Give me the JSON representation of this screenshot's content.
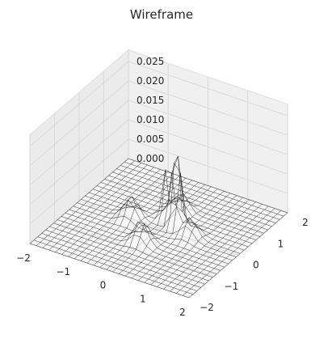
{
  "chart_data": {
    "type": "wireframe",
    "title": "Wireframe",
    "xlabel": "",
    "ylabel": "",
    "zlabel": "",
    "xlim": [
      -2,
      2
    ],
    "ylim": [
      -2,
      2
    ],
    "zlim": [
      0,
      0.025
    ],
    "x_ticks": [
      "−2",
      "−1",
      "0",
      "1",
      "2"
    ],
    "y_ticks": [
      "−2",
      "−1",
      "0",
      "1",
      "2"
    ],
    "z_ticks": [
      "0.000",
      "0.005",
      "0.010",
      "0.015",
      "0.020",
      "0.025"
    ],
    "x_tick_values": [
      -2,
      -1,
      0,
      1,
      2
    ],
    "y_tick_values": [
      -2,
      -1,
      0,
      1,
      2
    ],
    "z_tick_values": [
      0,
      0.005,
      0.01,
      0.015,
      0.02,
      0.025
    ],
    "grid": true,
    "grid_resolution": 25,
    "surface_peaks": [
      {
        "x": 0.2,
        "y": 0.35,
        "z": 0.021
      },
      {
        "x": 0.35,
        "y": 0.2,
        "z": 0.017
      },
      {
        "x": -0.05,
        "y": 0.4,
        "z": 0.013
      },
      {
        "x": -0.7,
        "y": 0.0,
        "z": 0.006
      },
      {
        "x": 0.0,
        "y": -0.7,
        "z": 0.006
      },
      {
        "x": 0.75,
        "y": 0.05,
        "z": 0.005
      },
      {
        "x": 0.05,
        "y": 0.8,
        "z": 0.005
      }
    ],
    "wire_color": "#1a1a1a",
    "pane_color": "#ebebeb"
  }
}
